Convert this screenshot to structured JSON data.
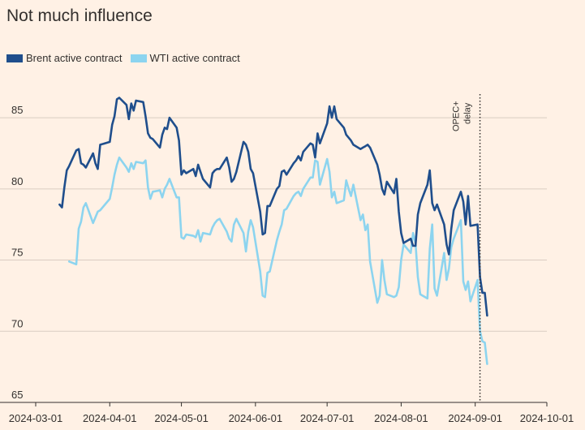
{
  "chart_data": {
    "type": "line",
    "title": "Not much influence",
    "xlabel": "",
    "ylabel": "",
    "x_ticks": [
      "2024-03-01",
      "2024-04-01",
      "2024-05-01",
      "2024-06-01",
      "2024-07-01",
      "2024-08-01",
      "2024-09-01",
      "2024-10-01"
    ],
    "y_ticks": [
      65,
      70,
      75,
      80,
      85
    ],
    "ylim": [
      65,
      87
    ],
    "xlim": [
      "2024-03-01",
      "2024-10-01"
    ],
    "grid": "horizontal",
    "legend": "top-left",
    "annotation": {
      "label_line1": "OPEC+",
      "label_line2": "delay",
      "date": "2024-09-03"
    },
    "colors": {
      "brent": "#1F4E8C",
      "wti": "#8CD4EF",
      "grid": "#D9CCC1",
      "axis": "#33302E"
    },
    "series": [
      {
        "name": "Brent active contract",
        "color": "#1F4E8C",
        "points": [
          [
            "2024-03-11",
            78.9
          ],
          [
            "2024-03-12",
            78.7
          ],
          [
            "2024-03-13",
            80.1
          ],
          [
            "2024-03-14",
            81.3
          ],
          [
            "2024-03-15",
            81.6
          ],
          [
            "2024-03-18",
            82.7
          ],
          [
            "2024-03-19",
            82.8
          ],
          [
            "2024-03-20",
            81.8
          ],
          [
            "2024-03-21",
            81.7
          ],
          [
            "2024-03-22",
            81.5
          ],
          [
            "2024-03-25",
            82.5
          ],
          [
            "2024-03-26",
            81.8
          ],
          [
            "2024-03-27",
            81.4
          ],
          [
            "2024-03-28",
            83.1
          ],
          [
            "2024-04-01",
            83.3
          ],
          [
            "2024-04-02",
            84.5
          ],
          [
            "2024-04-03",
            85.1
          ],
          [
            "2024-04-04",
            86.3
          ],
          [
            "2024-04-05",
            86.4
          ],
          [
            "2024-04-08",
            85.9
          ],
          [
            "2024-04-09",
            84.9
          ],
          [
            "2024-04-10",
            86.0
          ],
          [
            "2024-04-11",
            85.5
          ],
          [
            "2024-04-12",
            86.2
          ],
          [
            "2024-04-15",
            86.1
          ],
          [
            "2024-04-16",
            85.1
          ],
          [
            "2024-04-17",
            83.9
          ],
          [
            "2024-04-18",
            83.6
          ],
          [
            "2024-04-19",
            83.5
          ],
          [
            "2024-04-22",
            82.9
          ],
          [
            "2024-04-23",
            83.8
          ],
          [
            "2024-04-24",
            84.3
          ],
          [
            "2024-04-25",
            84.2
          ],
          [
            "2024-04-26",
            85.0
          ],
          [
            "2024-04-29",
            84.3
          ],
          [
            "2024-04-30",
            83.4
          ],
          [
            "2024-05-01",
            81.0
          ],
          [
            "2024-05-02",
            81.3
          ],
          [
            "2024-05-03",
            81.1
          ],
          [
            "2024-05-06",
            81.4
          ],
          [
            "2024-05-07",
            80.9
          ],
          [
            "2024-05-08",
            81.7
          ],
          [
            "2024-05-09",
            81.2
          ],
          [
            "2024-05-10",
            80.7
          ],
          [
            "2024-05-13",
            80.1
          ],
          [
            "2024-05-14",
            81.1
          ],
          [
            "2024-05-15",
            81.3
          ],
          [
            "2024-05-16",
            81.4
          ],
          [
            "2024-05-17",
            81.4
          ],
          [
            "2024-05-20",
            82.2
          ],
          [
            "2024-05-21",
            81.5
          ],
          [
            "2024-05-22",
            80.5
          ],
          [
            "2024-05-23",
            80.7
          ],
          [
            "2024-05-24",
            81.2
          ],
          [
            "2024-05-27",
            83.3
          ],
          [
            "2024-05-28",
            83.1
          ],
          [
            "2024-05-29",
            82.6
          ],
          [
            "2024-05-30",
            81.4
          ],
          [
            "2024-05-31",
            81.1
          ],
          [
            "2024-06-03",
            78.4
          ],
          [
            "2024-06-04",
            76.8
          ],
          [
            "2024-06-05",
            76.9
          ],
          [
            "2024-06-06",
            78.8
          ],
          [
            "2024-06-07",
            78.8
          ],
          [
            "2024-06-10",
            80.0
          ],
          [
            "2024-06-11",
            80.2
          ],
          [
            "2024-06-12",
            81.2
          ],
          [
            "2024-06-13",
            81.3
          ],
          [
            "2024-06-14",
            81.0
          ],
          [
            "2024-06-17",
            81.8
          ],
          [
            "2024-06-18",
            82.0
          ],
          [
            "2024-06-19",
            82.3
          ],
          [
            "2024-06-20",
            82.0
          ],
          [
            "2024-06-21",
            82.6
          ],
          [
            "2024-06-24",
            83.2
          ],
          [
            "2024-06-25",
            83.1
          ],
          [
            "2024-06-26",
            82.2
          ],
          [
            "2024-06-27",
            83.9
          ],
          [
            "2024-06-28",
            83.2
          ],
          [
            "2024-07-01",
            84.6
          ],
          [
            "2024-07-02",
            85.8
          ],
          [
            "2024-07-03",
            85.0
          ],
          [
            "2024-07-04",
            85.8
          ],
          [
            "2024-07-05",
            84.9
          ],
          [
            "2024-07-08",
            84.3
          ],
          [
            "2024-07-09",
            83.8
          ],
          [
            "2024-07-10",
            83.6
          ],
          [
            "2024-07-11",
            83.4
          ],
          [
            "2024-07-12",
            83.1
          ],
          [
            "2024-07-15",
            82.8
          ],
          [
            "2024-07-16",
            82.9
          ],
          [
            "2024-07-17",
            83.0
          ],
          [
            "2024-07-18",
            83.1
          ],
          [
            "2024-07-19",
            82.9
          ],
          [
            "2024-07-22",
            81.7
          ],
          [
            "2024-07-23",
            81.0
          ],
          [
            "2024-07-24",
            80.0
          ],
          [
            "2024-07-25",
            79.6
          ],
          [
            "2024-07-26",
            80.5
          ],
          [
            "2024-07-29",
            79.7
          ],
          [
            "2024-07-30",
            80.7
          ],
          [
            "2024-07-31",
            78.4
          ],
          [
            "2024-08-01",
            76.9
          ],
          [
            "2024-08-02",
            76.2
          ],
          [
            "2024-08-05",
            76.5
          ],
          [
            "2024-08-06",
            76.0
          ],
          [
            "2024-08-07",
            76.0
          ],
          [
            "2024-08-08",
            78.2
          ],
          [
            "2024-08-09",
            79.0
          ],
          [
            "2024-08-12",
            80.3
          ],
          [
            "2024-08-13",
            81.3
          ],
          [
            "2024-08-14",
            79.0
          ],
          [
            "2024-08-15",
            78.5
          ],
          [
            "2024-08-16",
            78.9
          ],
          [
            "2024-08-19",
            77.5
          ],
          [
            "2024-08-20",
            76.1
          ],
          [
            "2024-08-21",
            75.4
          ],
          [
            "2024-08-22",
            77.2
          ],
          [
            "2024-08-23",
            78.5
          ],
          [
            "2024-08-26",
            79.8
          ],
          [
            "2024-08-27",
            79.1
          ],
          [
            "2024-08-28",
            77.5
          ],
          [
            "2024-08-29",
            79.5
          ],
          [
            "2024-08-30",
            77.4
          ],
          [
            "2024-09-02",
            77.5
          ],
          [
            "2024-09-03",
            73.8
          ],
          [
            "2024-09-04",
            72.7
          ],
          [
            "2024-09-05",
            72.7
          ],
          [
            "2024-09-06",
            71.1
          ]
        ]
      },
      {
        "name": "WTI active contract",
        "color": "#8CD4EF",
        "points": [
          [
            "2024-03-15",
            74.9
          ],
          [
            "2024-03-18",
            74.7
          ],
          [
            "2024-03-19",
            77.2
          ],
          [
            "2024-03-20",
            77.7
          ],
          [
            "2024-03-21",
            78.7
          ],
          [
            "2024-03-22",
            79.0
          ],
          [
            "2024-03-25",
            77.6
          ],
          [
            "2024-03-26",
            78.0
          ],
          [
            "2024-03-27",
            78.4
          ],
          [
            "2024-03-28",
            78.5
          ],
          [
            "2024-04-01",
            79.3
          ],
          [
            "2024-04-02",
            80.1
          ],
          [
            "2024-04-03",
            81.0
          ],
          [
            "2024-04-04",
            81.7
          ],
          [
            "2024-04-05",
            82.2
          ],
          [
            "2024-04-08",
            81.5
          ],
          [
            "2024-04-09",
            81.2
          ],
          [
            "2024-04-10",
            81.8
          ],
          [
            "2024-04-11",
            81.4
          ],
          [
            "2024-04-12",
            81.9
          ],
          [
            "2024-04-15",
            81.8
          ],
          [
            "2024-04-16",
            82.0
          ],
          [
            "2024-04-17",
            80.1
          ],
          [
            "2024-04-18",
            79.3
          ],
          [
            "2024-04-19",
            79.8
          ],
          [
            "2024-04-22",
            79.9
          ],
          [
            "2024-04-23",
            79.4
          ],
          [
            "2024-04-24",
            80.0
          ],
          [
            "2024-04-25",
            80.3
          ],
          [
            "2024-04-26",
            80.7
          ],
          [
            "2024-04-29",
            79.4
          ],
          [
            "2024-04-30",
            79.4
          ],
          [
            "2024-05-01",
            76.6
          ],
          [
            "2024-05-02",
            76.5
          ],
          [
            "2024-05-03",
            76.8
          ],
          [
            "2024-05-06",
            76.7
          ],
          [
            "2024-05-07",
            76.6
          ],
          [
            "2024-05-08",
            77.1
          ],
          [
            "2024-05-09",
            76.3
          ],
          [
            "2024-05-10",
            76.9
          ],
          [
            "2024-05-13",
            76.8
          ],
          [
            "2024-05-14",
            77.3
          ],
          [
            "2024-05-15",
            77.6
          ],
          [
            "2024-05-16",
            77.8
          ],
          [
            "2024-05-17",
            77.9
          ],
          [
            "2024-05-20",
            77.0
          ],
          [
            "2024-05-21",
            76.5
          ],
          [
            "2024-05-22",
            76.3
          ],
          [
            "2024-05-23",
            77.5
          ],
          [
            "2024-05-24",
            77.9
          ],
          [
            "2024-05-27",
            76.9
          ],
          [
            "2024-05-28",
            75.6
          ],
          [
            "2024-05-29",
            77.0
          ],
          [
            "2024-05-30",
            77.8
          ],
          [
            "2024-05-31",
            77.3
          ],
          [
            "2024-06-03",
            74.2
          ],
          [
            "2024-06-04",
            72.5
          ],
          [
            "2024-06-05",
            72.4
          ],
          [
            "2024-06-06",
            74.1
          ],
          [
            "2024-06-07",
            74.2
          ],
          [
            "2024-06-10",
            76.4
          ],
          [
            "2024-06-11",
            77.0
          ],
          [
            "2024-06-12",
            77.5
          ],
          [
            "2024-06-13",
            78.5
          ],
          [
            "2024-06-14",
            78.6
          ],
          [
            "2024-06-17",
            79.5
          ],
          [
            "2024-06-18",
            79.7
          ],
          [
            "2024-06-19",
            79.8
          ],
          [
            "2024-06-20",
            79.5
          ],
          [
            "2024-06-21",
            80.0
          ],
          [
            "2024-06-24",
            80.8
          ],
          [
            "2024-06-25",
            80.8
          ],
          [
            "2024-06-26",
            82.0
          ],
          [
            "2024-06-27",
            81.9
          ],
          [
            "2024-06-28",
            80.3
          ],
          [
            "2024-07-01",
            82.1
          ],
          [
            "2024-07-02",
            81.2
          ],
          [
            "2024-07-03",
            79.4
          ],
          [
            "2024-07-04",
            79.8
          ],
          [
            "2024-07-05",
            79.0
          ],
          [
            "2024-07-08",
            79.2
          ],
          [
            "2024-07-09",
            80.6
          ],
          [
            "2024-07-10",
            80.0
          ],
          [
            "2024-07-11",
            79.5
          ],
          [
            "2024-07-12",
            80.3
          ],
          [
            "2024-07-15",
            77.8
          ],
          [
            "2024-07-16",
            78.2
          ],
          [
            "2024-07-17",
            77.1
          ],
          [
            "2024-07-18",
            77.5
          ],
          [
            "2024-07-19",
            74.9
          ],
          [
            "2024-07-22",
            72.0
          ],
          [
            "2024-07-23",
            72.5
          ],
          [
            "2024-07-24",
            75.0
          ],
          [
            "2024-07-25",
            73.6
          ],
          [
            "2024-07-26",
            72.6
          ],
          [
            "2024-07-29",
            72.4
          ],
          [
            "2024-07-30",
            72.5
          ],
          [
            "2024-07-31",
            73.1
          ],
          [
            "2024-08-01",
            75.0
          ],
          [
            "2024-08-02",
            76.1
          ],
          [
            "2024-08-05",
            75.5
          ],
          [
            "2024-08-06",
            76.9
          ],
          [
            "2024-08-07",
            76.2
          ],
          [
            "2024-08-08",
            73.8
          ],
          [
            "2024-08-09",
            72.6
          ],
          [
            "2024-08-12",
            72.3
          ],
          [
            "2024-08-13",
            75.8
          ],
          [
            "2024-08-14",
            77.5
          ],
          [
            "2024-08-15",
            73.0
          ],
          [
            "2024-08-16",
            72.5
          ],
          [
            "2024-08-19",
            75.5
          ],
          [
            "2024-08-20",
            73.6
          ],
          [
            "2024-08-21",
            74.4
          ],
          [
            "2024-08-22",
            75.9
          ],
          [
            "2024-08-23",
            76.5
          ],
          [
            "2024-08-26",
            77.8
          ],
          [
            "2024-08-27",
            73.5
          ],
          [
            "2024-08-28",
            72.9
          ],
          [
            "2024-08-29",
            73.5
          ],
          [
            "2024-08-30",
            72.1
          ],
          [
            "2024-09-02",
            73.6
          ],
          [
            "2024-09-03",
            70.0
          ],
          [
            "2024-09-04",
            69.3
          ],
          [
            "2024-09-05",
            69.2
          ],
          [
            "2024-09-06",
            67.7
          ]
        ]
      }
    ]
  }
}
